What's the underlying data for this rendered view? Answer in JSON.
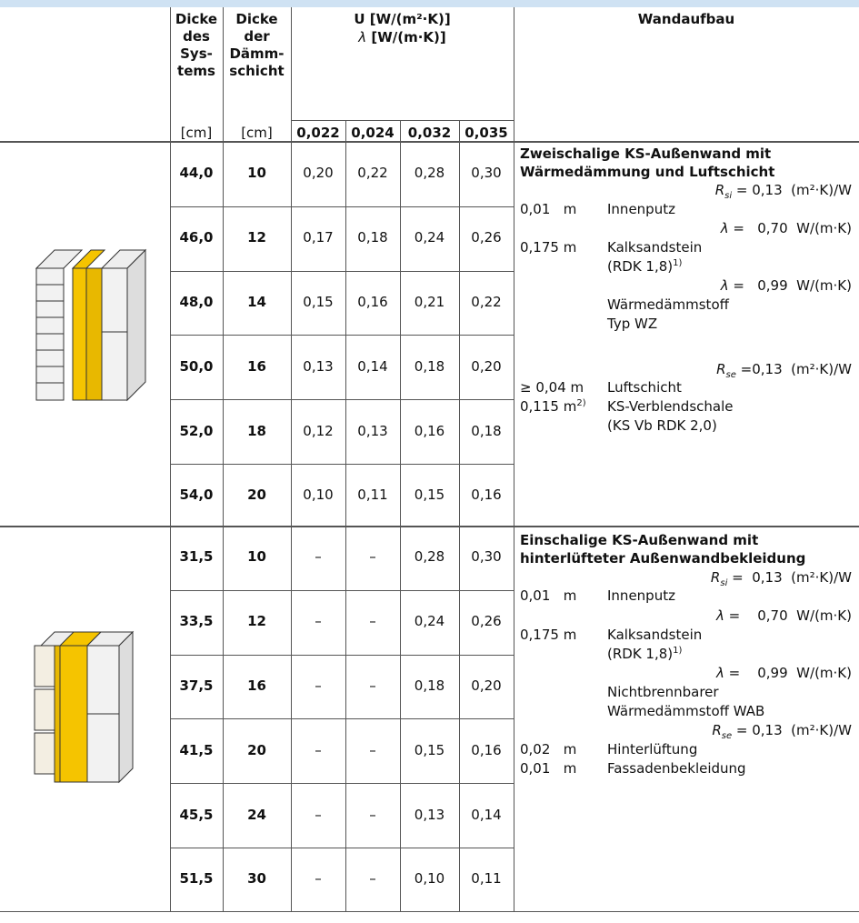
{
  "header": {
    "dicke_systems": [
      "Dicke",
      "des",
      "Sys-",
      "tems"
    ],
    "dicke_daemmschicht": [
      "Dicke",
      "der",
      "Dämm-",
      "schicht"
    ],
    "u_label": "U [W/(m²·K)]",
    "lambda_symbol": "λ",
    "lambda_unit": "[W/(m·K)]",
    "units": [
      "[cm]",
      "[cm]"
    ],
    "lambdas": [
      "0,022",
      "0,024",
      "0,032",
      "0,035"
    ],
    "wandaufbau": "Wandaufbau"
  },
  "sections": [
    {
      "rows": [
        [
          "44,0",
          "10",
          "0,20",
          "0,22",
          "0,28",
          "0,30"
        ],
        [
          "46,0",
          "12",
          "0,17",
          "0,18",
          "0,24",
          "0,26"
        ],
        [
          "48,0",
          "14",
          "0,15",
          "0,16",
          "0,21",
          "0,22"
        ],
        [
          "50,0",
          "16",
          "0,13",
          "0,14",
          "0,18",
          "0,20"
        ],
        [
          "52,0",
          "18",
          "0,12",
          "0,13",
          "0,16",
          "0,18"
        ],
        [
          "54,0",
          "20",
          "0,10",
          "0,11",
          "0,15",
          "0,16"
        ]
      ],
      "description": {
        "title": [
          "Zweischalige KS-Außenwand mit",
          "Wärmedämmung und Luftschicht"
        ],
        "lines": [
          {
            "symbol": "R",
            "sub": "si",
            "value": "= 0,13  (m²·K)/W"
          },
          {
            "label": "0,01   m",
            "text": "Innenputz"
          },
          {
            "symbol": "λ",
            "value": "=   0,70  W/(m·K)"
          },
          {
            "label": "0,175 m",
            "text": "Kalksandstein"
          },
          {
            "text": "(RDK 1,8)",
            "sup": "1)"
          },
          {
            "symbol": "λ",
            "value": "=   0,99  W/(m·K)"
          },
          {
            "text": "Wärmedämmstoff"
          },
          {
            "text": "Typ WZ"
          },
          {
            "symbol": "R",
            "sub": "se",
            "value": "=0,13  (m²·K)/W"
          },
          {
            "label": "≥ 0,04 m",
            "text": "Luftschicht"
          },
          {
            "label": "0,115 m",
            "label_sup": "2)",
            "text": "KS-Verblendschale"
          },
          {
            "text": "(KS Vb RDK 2,0)"
          }
        ]
      }
    },
    {
      "rows": [
        [
          "31,5",
          "10",
          "–",
          "–",
          "0,28",
          "0,30"
        ],
        [
          "33,5",
          "12",
          "–",
          "–",
          "0,24",
          "0,26"
        ],
        [
          "37,5",
          "16",
          "–",
          "–",
          "0,18",
          "0,20"
        ],
        [
          "41,5",
          "20",
          "–",
          "–",
          "0,15",
          "0,16"
        ],
        [
          "45,5",
          "24",
          "–",
          "–",
          "0,13",
          "0,14"
        ],
        [
          "51,5",
          "30",
          "–",
          "–",
          "0,10",
          "0,11"
        ]
      ],
      "description": {
        "title": [
          "Einschalige KS-Außenwand mit",
          "hinterlüfteter Außenwandbekleidung"
        ],
        "lines": [
          {
            "symbol": "R",
            "sub": "si",
            "value": "=  0,13  (m²·K)/W"
          },
          {
            "label": "0,01   m",
            "text": "Innenputz"
          },
          {
            "symbol": "λ",
            "value": "=    0,70  W/(m·K)"
          },
          {
            "label": "0,175 m",
            "text": "Kalksandstein"
          },
          {
            "text": "(RDK 1,8)",
            "sup": "1)"
          },
          {
            "symbol": "λ",
            "value": "=    0,99  W/(m·K)"
          },
          {
            "text": "Nichtbrennbarer"
          },
          {
            "text": "Wärmedämmstoff WAB"
          },
          {
            "symbol": "R",
            "sub": "se",
            "value": "= 0,13  (m²·K)/W"
          },
          {
            "label": "0,02   m",
            "text": "Hinterlüftung"
          },
          {
            "label": "0,01   m",
            "text": "Fassadenbekleidung"
          }
        ]
      }
    }
  ]
}
